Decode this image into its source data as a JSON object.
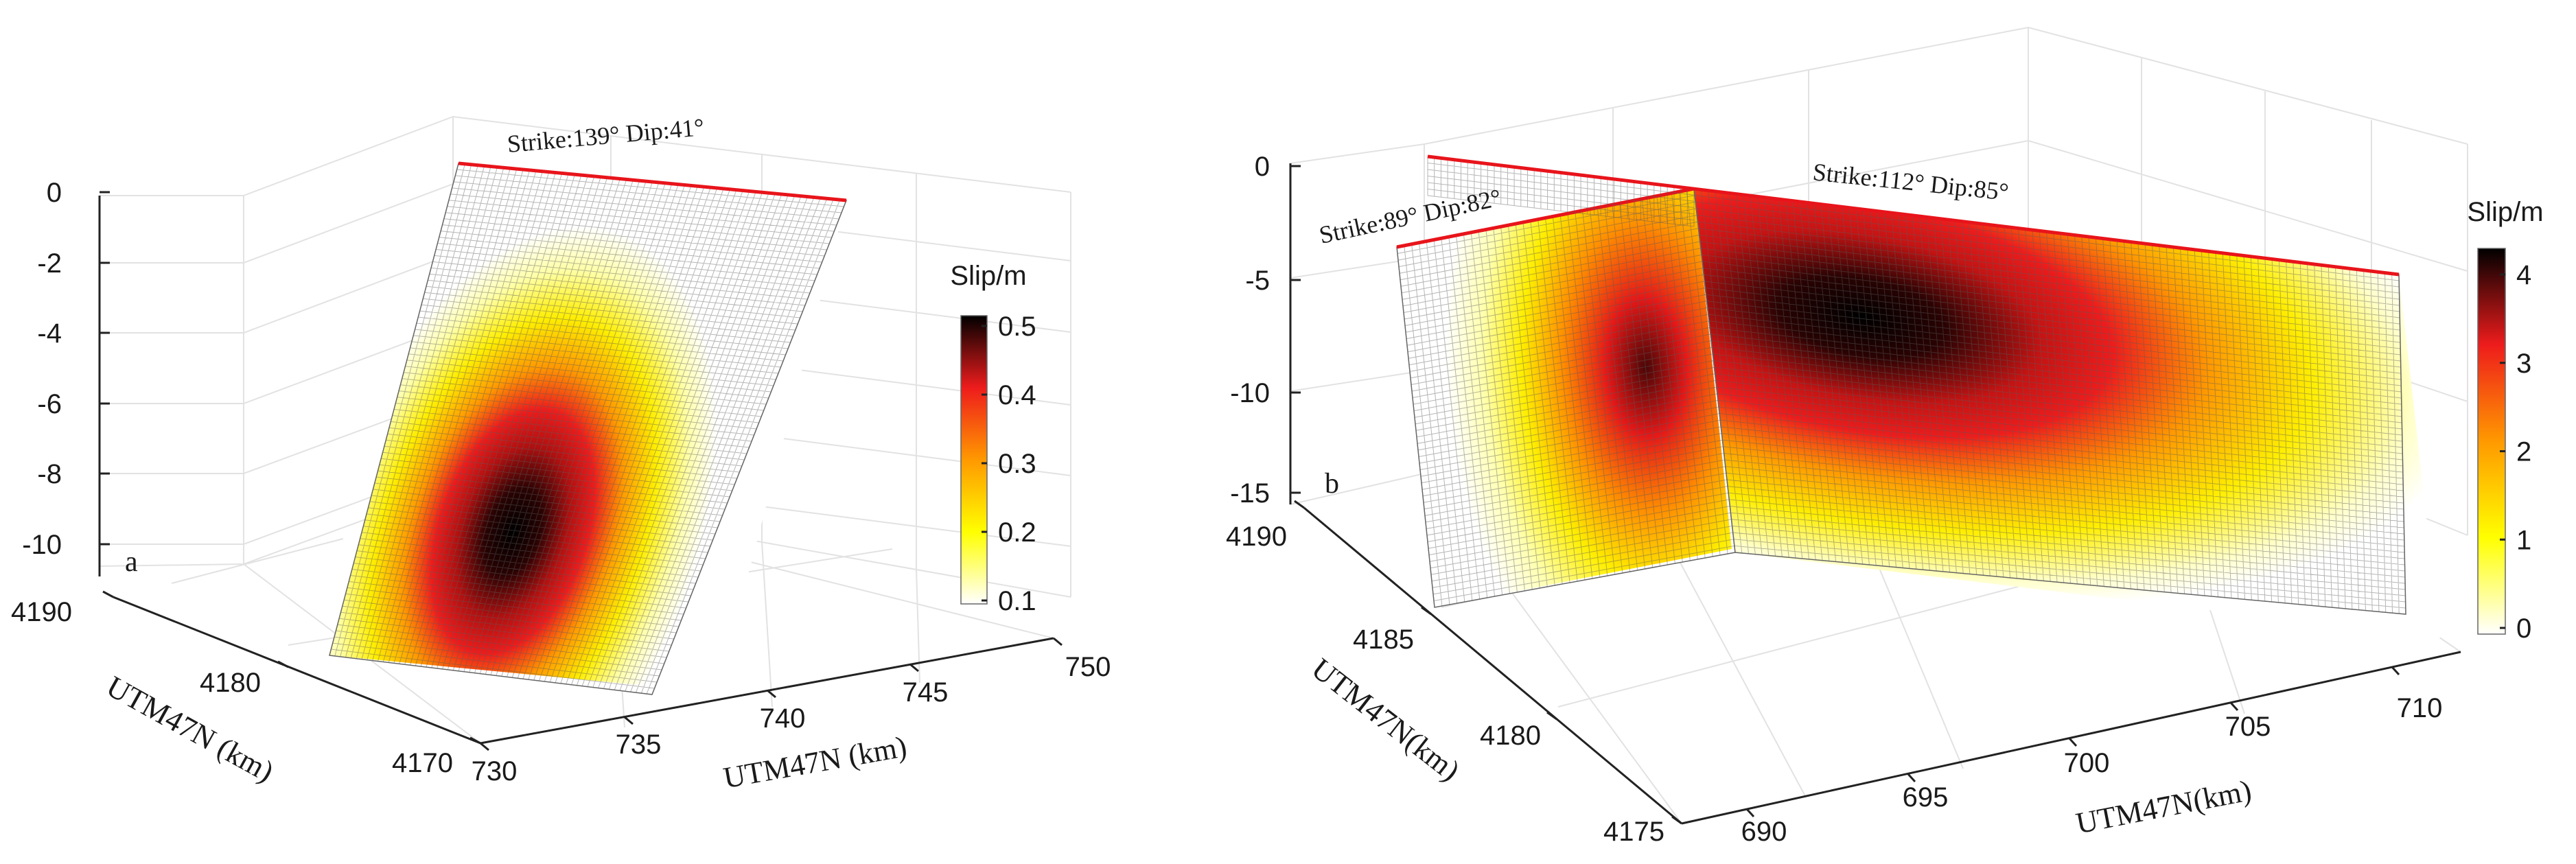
{
  "chart_data": [
    {
      "panel_label": "a",
      "type": "heatmap",
      "subtype": "3d-fault-slip-surface",
      "faults": [
        {
          "annotation": "Strike:139°  Dip:41°",
          "strike_deg": 139,
          "dip_deg": 41,
          "peak_slip_m": 0.5,
          "peak_location": "lower-left of fault plane"
        }
      ],
      "x_axis": {
        "label": "UTM47N (km)",
        "ticks": [
          "730",
          "735",
          "740",
          "745",
          "750"
        ],
        "range": [
          730,
          750
        ]
      },
      "y_axis": {
        "label": "UTM47N (km)",
        "ticks": [
          "4170",
          "4180",
          "4190"
        ],
        "range": [
          4170,
          4190
        ]
      },
      "z_axis": {
        "label": "",
        "ticks": [
          "0",
          "-2",
          "-4",
          "-6",
          "-8",
          "-10"
        ],
        "range": [
          -11,
          0
        ]
      },
      "colorbar": {
        "title": "Slip/m",
        "ticks": [
          "0.1",
          "0.2",
          "0.3",
          "0.4",
          "0.5"
        ],
        "range": [
          0.1,
          0.5
        ],
        "colormap": [
          "#ffffff",
          "#ffff00",
          "#ff9900",
          "#ee1c1c",
          "#000000"
        ]
      },
      "fault_trace_color": "#e8141b",
      "grid": true
    },
    {
      "panel_label": "b",
      "type": "heatmap",
      "subtype": "3d-fault-slip-surface",
      "faults": [
        {
          "annotation": "Strike:89°  Dip:82°",
          "strike_deg": 89,
          "dip_deg": 82,
          "peak_slip_m": 2.5,
          "peak_location": "right edge near junction"
        },
        {
          "annotation": "Strike:112°  Dip:85°",
          "strike_deg": 112,
          "dip_deg": 85,
          "peak_slip_m": 4.2,
          "peak_location": "upper-left, near junction"
        }
      ],
      "x_axis": {
        "label": "UTM47N(km)",
        "ticks": [
          "690",
          "695",
          "700",
          "705",
          "710"
        ],
        "range": [
          688,
          712
        ]
      },
      "y_axis": {
        "label": "UTM47N(km)",
        "ticks": [
          "4175",
          "4180",
          "4185",
          "4190"
        ],
        "range": [
          4175,
          4190
        ]
      },
      "z_axis": {
        "label": "",
        "ticks": [
          "0",
          "-5",
          "-10",
          "-15"
        ],
        "range": [
          -15,
          0
        ]
      },
      "colorbar": {
        "title": "Slip/m",
        "ticks": [
          "0",
          "1",
          "2",
          "3",
          "4"
        ],
        "range": [
          0,
          4.2
        ],
        "colormap": [
          "#ffffff",
          "#ffff00",
          "#ff9900",
          "#ee1c1c",
          "#000000"
        ]
      },
      "fault_trace_color": "#e8141b",
      "grid": true
    }
  ]
}
